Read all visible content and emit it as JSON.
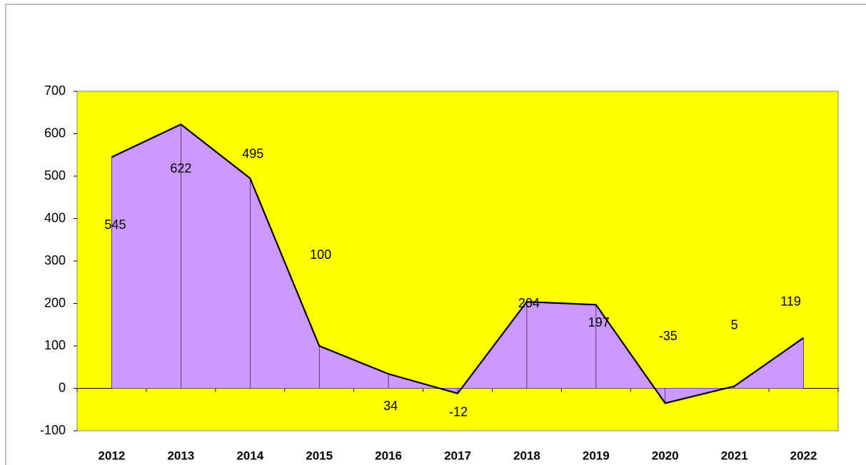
{
  "chart_data": {
    "type": "area",
    "categories": [
      "2012",
      "2013",
      "2014",
      "2015",
      "2016",
      "2017",
      "2018",
      "2019",
      "2020",
      "2021",
      "2022"
    ],
    "values": [
      545,
      622,
      495,
      100,
      34,
      -12,
      204,
      197,
      -35,
      5,
      119
    ],
    "color": "#cc99ff",
    "background": "#ffff00",
    "ylim": [
      -100,
      700
    ],
    "yticks": [
      -100,
      0,
      100,
      200,
      300,
      400,
      500,
      600,
      700
    ],
    "grid": false
  }
}
